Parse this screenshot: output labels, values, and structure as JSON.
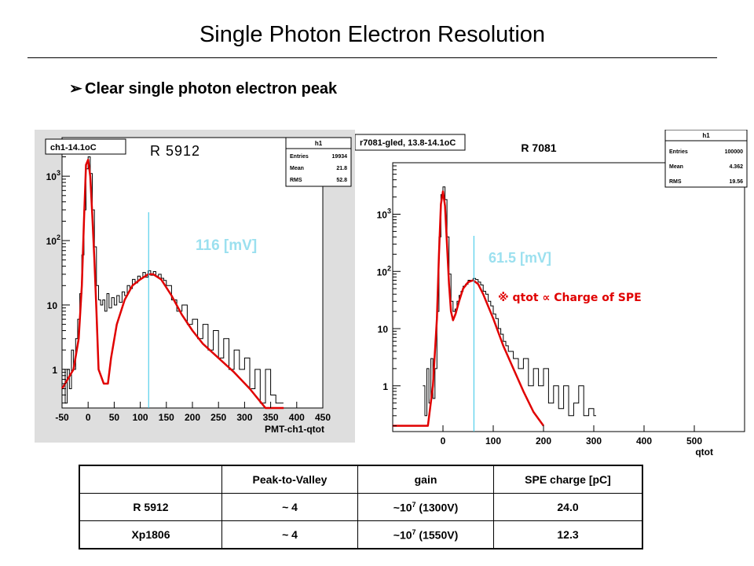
{
  "slide": {
    "title": "Single Photon Electron Resolution",
    "bullet_arrow": "➢",
    "bullet": "Clear single photon electron peak"
  },
  "colors": {
    "fit_line": "#e00000",
    "marker_line": "#33c6e6",
    "histogram": "#000000",
    "label_cyan": "#9be0ef",
    "pad_gray": "#dedede"
  },
  "chart_data": [
    {
      "type": "line",
      "title": "ch1-14.1oC",
      "pmt_label": "R 5912",
      "marker_label": "116 [mV]",
      "marker_x": 116,
      "xlabel": "PMT-ch1-qtot",
      "ylabel": "",
      "xlim": [
        -50,
        450
      ],
      "y_scale": "log",
      "y_range_log10": [
        -0.6,
        3.6
      ],
      "x_ticks": [
        "-50",
        "0",
        "50",
        "100",
        "150",
        "200",
        "250",
        "300",
        "350",
        "400",
        "450"
      ],
      "y_ticks": [
        {
          "base": "1",
          "exp": "",
          "value": 1
        },
        {
          "base": "10",
          "exp": "",
          "value": 10
        },
        {
          "base": "10",
          "exp": "2",
          "value": 100
        },
        {
          "base": "10",
          "exp": "3",
          "value": 1000
        }
      ],
      "stats": {
        "name": "h1",
        "rows": [
          [
            "Entries",
            "19934"
          ],
          [
            "Mean",
            "21.8"
          ],
          [
            "RMS",
            "52.8"
          ]
        ]
      },
      "fit": {
        "x": [
          -50,
          -28,
          -18,
          -12,
          -8,
          -4,
          0,
          4,
          8,
          12,
          16,
          20,
          30,
          38,
          44,
          55,
          70,
          85,
          100,
          115,
          125,
          140,
          160,
          180,
          200,
          220,
          250,
          280,
          310,
          340,
          360,
          370,
          375
        ],
        "y": [
          0.5,
          1,
          3,
          20,
          200,
          1500,
          1800,
          1000,
          250,
          50,
          8,
          1,
          0.6,
          0.6,
          1.5,
          5,
          12,
          20,
          25,
          30,
          30,
          25,
          14,
          7,
          4,
          2.5,
          1.5,
          0.9,
          0.5,
          0.25,
          0.12,
          0.07,
          0.05
        ]
      },
      "histogram": {
        "x": [
          -48,
          -44,
          -40,
          -36,
          -32,
          -28,
          -24,
          -20,
          -16,
          -12,
          -8,
          -4,
          0,
          4,
          8,
          12,
          16,
          20,
          24,
          28,
          32,
          36,
          40,
          45,
          50,
          55,
          60,
          65,
          70,
          75,
          80,
          85,
          90,
          95,
          100,
          105,
          110,
          115,
          120,
          125,
          130,
          135,
          140,
          145,
          150,
          160,
          170,
          180,
          190,
          200,
          210,
          220,
          230,
          240,
          250,
          260,
          270,
          280,
          290,
          300,
          310,
          320,
          330,
          340,
          350,
          360,
          370
        ],
        "y": [
          1,
          0.3,
          1,
          0.5,
          2,
          1,
          3,
          6,
          15,
          60,
          300,
          1300,
          2000,
          1100,
          300,
          80,
          20,
          12,
          10,
          12,
          8,
          15,
          9,
          13,
          10,
          14,
          11,
          16,
          14,
          20,
          18,
          25,
          22,
          28,
          26,
          32,
          27,
          34,
          29,
          33,
          28,
          30,
          26,
          24,
          20,
          12,
          8,
          10,
          5,
          6,
          3,
          5,
          2,
          4,
          1.5,
          3,
          1,
          2,
          1,
          1.5,
          0.5,
          1,
          0.3,
          1,
          0.4,
          0.3,
          0.3
        ]
      }
    },
    {
      "type": "line",
      "title": "r7081-gled, 13.8-14.1oC",
      "pmt_label": "R 7081",
      "marker_label": "61.5 [mV]",
      "marker_x": 61.5,
      "annotation": "※ qtot ∝ Charge of SPE",
      "xlabel": "qtot",
      "ylabel": "",
      "xlim": [
        -100,
        600
      ],
      "y_scale": "log",
      "y_range_log10": [
        -0.8,
        3.9
      ],
      "x_ticks": [
        "0",
        "100",
        "200",
        "300",
        "400",
        "500"
      ],
      "y_ticks": [
        {
          "base": "1",
          "exp": "",
          "value": 1
        },
        {
          "base": "10",
          "exp": "",
          "value": 10
        },
        {
          "base": "10",
          "exp": "2",
          "value": 100
        },
        {
          "base": "10",
          "exp": "3",
          "value": 1000
        }
      ],
      "stats": {
        "name": "h1",
        "rows": [
          [
            "Entries",
            "100000"
          ],
          [
            "Mean",
            "4.362"
          ],
          [
            "RMS",
            "19.56"
          ]
        ]
      },
      "fit": {
        "x": [
          -100,
          -30,
          -20,
          -12,
          -8,
          -4,
          0,
          4,
          8,
          12,
          16,
          20,
          25,
          32,
          40,
          50,
          60,
          70,
          80,
          100,
          120,
          140,
          160,
          180,
          200
        ],
        "y": [
          0.2,
          0.2,
          1,
          15,
          200,
          1500,
          2500,
          1400,
          300,
          60,
          20,
          14,
          18,
          30,
          50,
          65,
          70,
          60,
          40,
          15,
          5,
          2,
          0.8,
          0.35,
          0.2
        ]
      },
      "histogram": {
        "x": [
          -40,
          -36,
          -32,
          -28,
          -24,
          -20,
          -16,
          -12,
          -8,
          -4,
          0,
          4,
          8,
          12,
          16,
          20,
          24,
          28,
          32,
          36,
          40,
          45,
          50,
          55,
          60,
          65,
          70,
          75,
          80,
          85,
          90,
          95,
          100,
          105,
          110,
          115,
          120,
          125,
          130,
          140,
          150,
          160,
          170,
          180,
          190,
          200,
          210,
          220,
          230,
          240,
          250,
          260,
          270,
          280,
          290,
          300
        ],
        "y": [
          1,
          0.3,
          2,
          0.5,
          3,
          0.6,
          2,
          20,
          400,
          2200,
          3000,
          1800,
          400,
          90,
          30,
          20,
          22,
          30,
          38,
          45,
          55,
          60,
          70,
          68,
          75,
          72,
          65,
          58,
          45,
          40,
          30,
          25,
          18,
          15,
          10,
          8,
          6,
          5,
          4,
          3,
          2,
          3,
          1,
          2,
          1,
          2,
          0.5,
          1,
          0.4,
          1,
          0.3,
          0.5,
          1,
          0.3,
          0.4,
          0.3
        ]
      }
    }
  ],
  "table": {
    "headers": [
      "",
      "Peak-to-Valley",
      "gain",
      "SPE charge [pC]"
    ],
    "rows": [
      {
        "name": "R 5912",
        "pv": "~ 4",
        "gain_base": "~10",
        "gain_exp": "7",
        "gain_rest": " (1300V)",
        "charge": "24.0"
      },
      {
        "name": "Xp1806",
        "pv": "~ 4",
        "gain_base": "~10",
        "gain_exp": "7",
        "gain_rest": " (1550V)",
        "charge": "12.3"
      }
    ]
  }
}
